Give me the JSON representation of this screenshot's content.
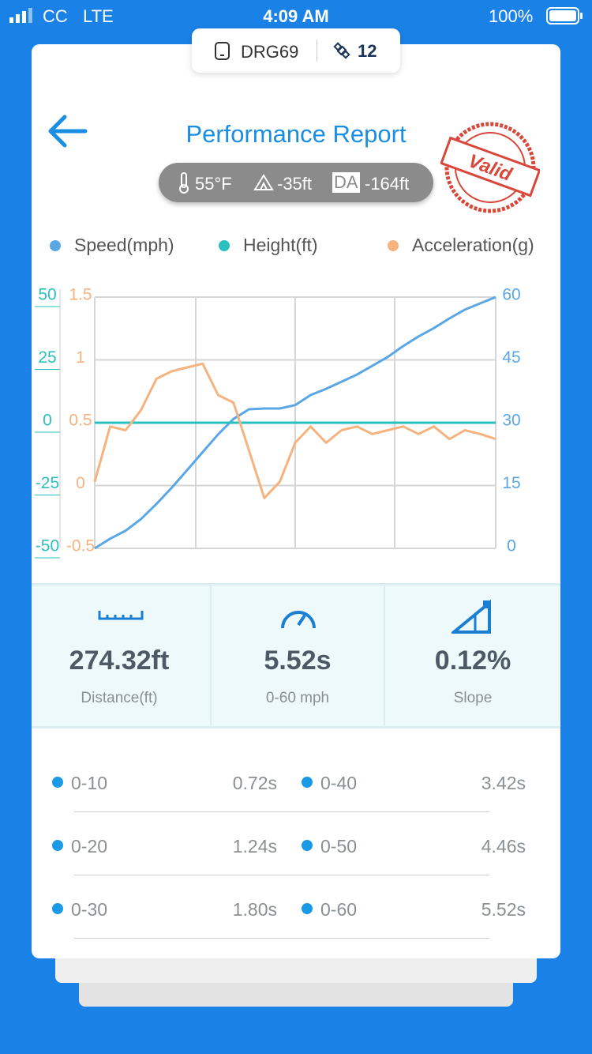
{
  "status_bar": {
    "carrier": "CC",
    "network": "LTE",
    "time": "4:09 AM",
    "battery": "100%"
  },
  "device": {
    "id": "DRG69",
    "satellites": "12"
  },
  "header": {
    "title": "Performance Report",
    "stamp": "Valid",
    "conditions": {
      "temperature": "55°F",
      "elevation": "-35ft",
      "da_label": "DA",
      "density_altitude": "-164ft"
    }
  },
  "chart_data": {
    "type": "line",
    "grid": true,
    "series": [
      {
        "name": "Speed(mph)",
        "color": "#5aa7e6",
        "axis": "y2",
        "values": [
          0,
          2.3,
          4.2,
          7,
          10.6,
          14.5,
          18.7,
          23,
          27.2,
          30.9,
          33.2,
          33.4,
          33.4,
          34.2,
          36.6,
          38.1,
          39.8,
          41.5,
          43.6,
          45.7,
          48.3,
          50.6,
          52.6,
          54.9,
          57,
          58.5,
          60
        ]
      },
      {
        "name": "Height(ft)",
        "color": "#2bbfc0",
        "axis": "y",
        "values": [
          0,
          0,
          0,
          0,
          0,
          0,
          0,
          0,
          0,
          0,
          0,
          0,
          0,
          0,
          0,
          0,
          0,
          0,
          0,
          0,
          0,
          0,
          0,
          0,
          0,
          0,
          0
        ]
      },
      {
        "name": "Acceleration(g)",
        "color": "#f5b37f",
        "axis": "y3",
        "values": [
          0.03,
          0.47,
          0.44,
          0.6,
          0.85,
          0.91,
          0.94,
          0.97,
          0.72,
          0.66,
          0.28,
          -0.1,
          0.03,
          0.34,
          0.47,
          0.34,
          0.44,
          0.47,
          0.41,
          0.44,
          0.47,
          0.41,
          0.47,
          0.37,
          0.44,
          0.41,
          0.37
        ]
      }
    ],
    "ylim": [
      -50,
      50
    ],
    "yticks": [
      -50,
      -25,
      0,
      25,
      50
    ],
    "y3lim": [
      -0.5,
      1.5
    ],
    "y3ticks": [
      -0.5,
      0,
      0.5,
      1,
      1.5
    ],
    "y2lim": [
      0,
      60
    ],
    "y2ticks": [
      0,
      15,
      30,
      45,
      60
    ]
  },
  "stats": [
    {
      "value": "274.32ft",
      "label": "Distance(ft)"
    },
    {
      "value": "5.52s",
      "label": "0-60 mph"
    },
    {
      "value": "0.12%",
      "label": "Slope"
    }
  ],
  "splits": [
    {
      "label": "0-10",
      "time": "0.72s"
    },
    {
      "label": "0-20",
      "time": "1.24s"
    },
    {
      "label": "0-30",
      "time": "1.80s"
    },
    {
      "label": "0-40",
      "time": "3.42s"
    },
    {
      "label": "0-50",
      "time": "4.46s"
    },
    {
      "label": "0-60",
      "time": "5.52s"
    }
  ]
}
